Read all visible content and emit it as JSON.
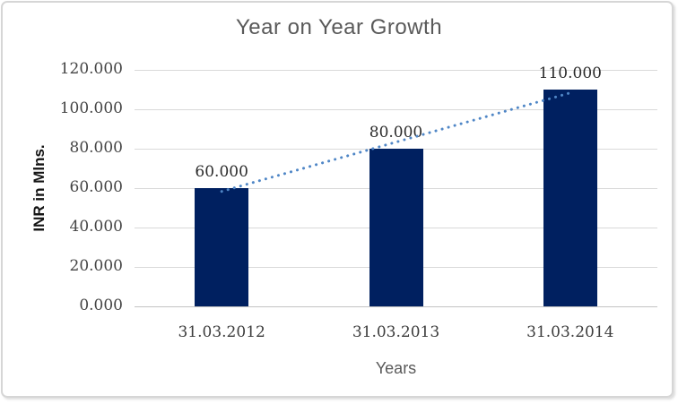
{
  "chart_data": {
    "type": "bar",
    "title": "Year on Year Growth",
    "xlabel": "Years",
    "ylabel": "INR in Mlns.",
    "categories": [
      "31.03.2012",
      "31.03.2013",
      "31.03.2014"
    ],
    "values": [
      60,
      80,
      110
    ],
    "data_labels": [
      "60.000",
      "80.000",
      "110.000"
    ],
    "ytick_values": [
      120,
      100,
      80,
      60,
      40,
      20,
      0
    ],
    "ytick_labels": [
      "120.000",
      "100.000",
      "80.000",
      "60.000",
      "40.000",
      "20.000",
      "0.000"
    ],
    "ylim": [
      0,
      120
    ],
    "grid": true,
    "legend": "none",
    "trendline": {
      "type": "linear",
      "style": "dotted",
      "fit_values": [
        58.333,
        83.333,
        108.333
      ]
    },
    "colors": {
      "bar": "#002060",
      "trendline": "#4f86c6",
      "gridline": "#d9d9d9",
      "axis_line": "#c3c3c3",
      "title_text": "#595959",
      "tick_text": "#454545",
      "data_label_text": "#2b2b2b"
    }
  }
}
